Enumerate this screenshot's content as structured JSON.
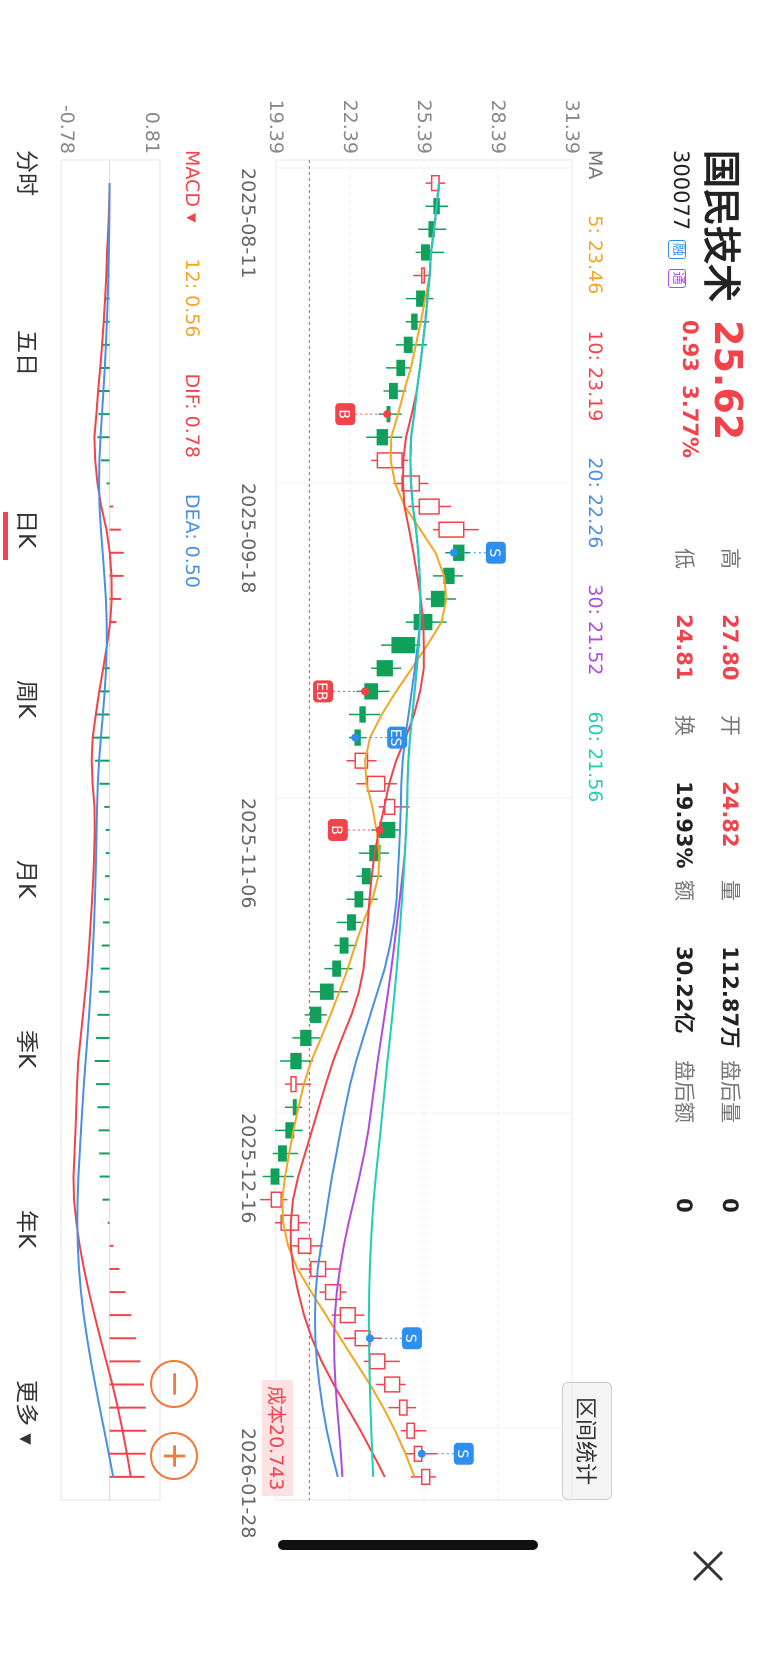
{
  "stock": {
    "name": "国民技术",
    "code": "300077",
    "tag_margin": "融",
    "tag_connect": "通",
    "price": "25.62",
    "change": "0.93",
    "change_pct": "3.77%"
  },
  "stats": {
    "high_label": "高",
    "high": "27.80",
    "open_label": "开",
    "open": "24.82",
    "volume_label": "量",
    "volume": "112.87万",
    "after_vol_label": "盘后量",
    "after_vol": "0",
    "low_label": "低",
    "low": "24.81",
    "turnover_label": "换",
    "turnover": "19.93%",
    "amount_label": "额",
    "amount": "30.22亿",
    "after_amt_label": "盘后额",
    "after_amt": "0"
  },
  "range_button": "区间统计",
  "close_icon": "close-icon",
  "ma_legend": {
    "label": "MA",
    "items": [
      {
        "text": "5: 23.46",
        "color": "#f5a623"
      },
      {
        "text": "10: 23.19",
        "color": "#f2434b"
      },
      {
        "text": "20: 22.26",
        "color": "#4a90e2"
      },
      {
        "text": "30: 21.52",
        "color": "#b04be0"
      },
      {
        "text": "60: 21.56",
        "color": "#1ecfb4"
      }
    ]
  },
  "macd_legend": {
    "label": "MACD",
    "items": [
      {
        "text": "12: 0.56",
        "color": "#f5a623"
      },
      {
        "text": "DIF: 0.78",
        "color": "#f2434b"
      },
      {
        "text": "DEA: 0.50",
        "color": "#4a90e2"
      }
    ]
  },
  "cost_label": "成本20.743",
  "tabs": [
    "分时",
    "五日",
    "日K",
    "周K",
    "月K",
    "季K",
    "年K",
    "更多"
  ],
  "active_tab": "日K",
  "chart_data": {
    "type": "candlestick",
    "y_ticks": [
      "31.39",
      "28.39",
      "25.39",
      "22.39",
      "19.39"
    ],
    "ylim": [
      19.39,
      31.39
    ],
    "x_ticks": [
      "2025-08-11",
      "2025-09-18",
      "2025-11-06",
      "2025-12-16",
      "2026-01-28"
    ],
    "macd_ticks": [
      "0.81",
      "-0.78"
    ],
    "cost_line": 20.743,
    "closes": [
      26.0,
      25.8,
      25.6,
      25.3,
      25.4,
      25.1,
      24.9,
      24.6,
      24.3,
      24.0,
      23.9,
      23.5,
      24.5,
      25.2,
      26.0,
      27.0,
      26.6,
      26.2,
      25.7,
      25.0,
      24.1,
      23.5,
      23.0,
      22.8,
      22.6,
      23.1,
      23.8,
      24.2,
      23.6,
      23.2,
      22.9,
      22.6,
      22.3,
      22.0,
      21.7,
      21.2,
      20.8,
      20.4,
      20.0,
      20.2,
      20.1,
      19.8,
      19.5,
      19.2,
      19.6,
      20.3,
      20.8,
      21.4,
      22.0,
      22.6,
      23.2,
      23.8,
      24.4,
      24.7,
      25.0,
      25.3,
      25.62
    ],
    "signals": [
      {
        "label": "B",
        "color": "#f2434b"
      },
      {
        "label": "S",
        "color": "#2f8fef"
      },
      {
        "label": "EB",
        "color": "#f2434b"
      },
      {
        "label": "ES",
        "color": "#2f8fef"
      },
      {
        "label": "B",
        "color": "#f2434b"
      },
      {
        "label": "S",
        "color": "#2f8fef"
      },
      {
        "label": "S",
        "color": "#2f8fef"
      }
    ]
  }
}
